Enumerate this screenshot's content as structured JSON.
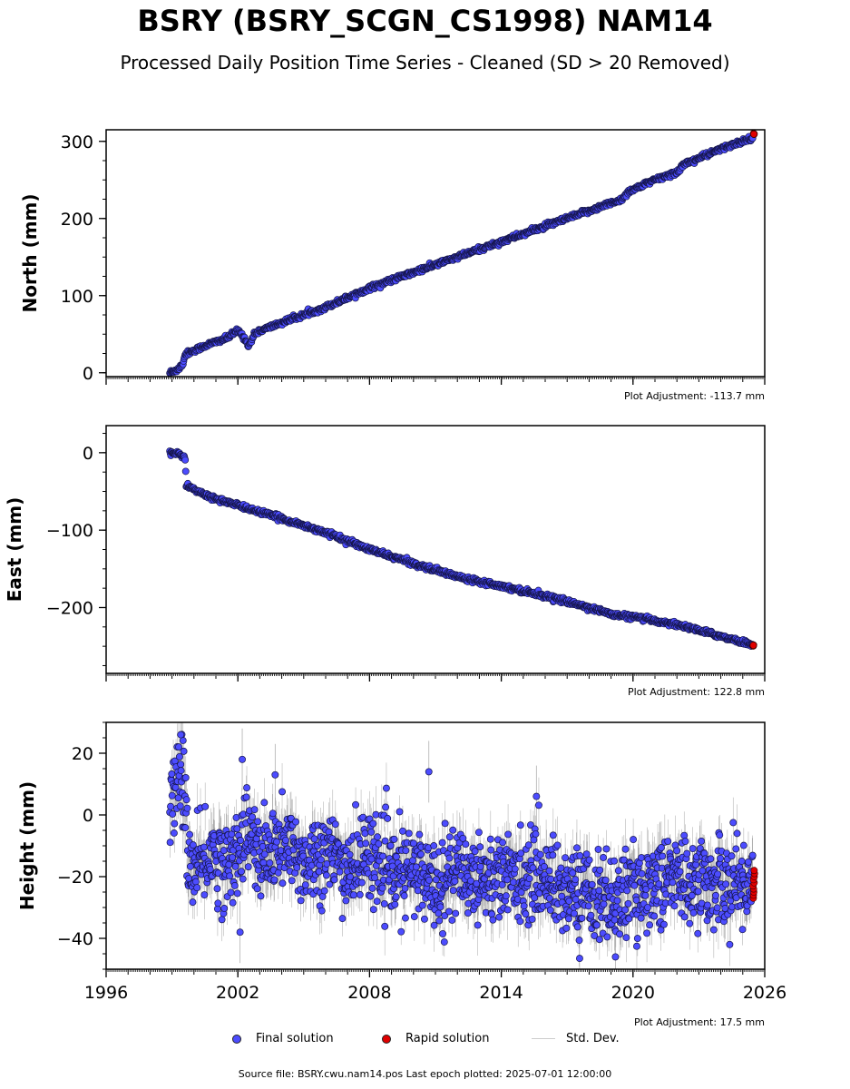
{
  "title": "BSRY (BSRY_SCGN_CS1998) NAM14",
  "subtitle": "Processed Daily Position Time Series - Cleaned (SD > 20 Removed)",
  "colors": {
    "final": "#4c4cff",
    "rapid": "#e00000",
    "std": "#c8c8c8",
    "std_dense": "#555555"
  },
  "legend": {
    "final": "Final solution",
    "rapid": "Rapid solution",
    "std": "Std. Dev."
  },
  "footer": "Source file: BSRY.cwu.nam14.pos  Last epoch plotted: 2025-07-01 12:00:00",
  "chart_data": [
    {
      "type": "scatter",
      "ylabel": "North (mm)",
      "adjustment": "Plot Adjustment: -113.7 mm",
      "xlim": [
        1996,
        2026
      ],
      "ylim": [
        -5,
        315
      ],
      "yticks": [
        0,
        100,
        200,
        300
      ],
      "xticks": [
        1996,
        2002,
        2008,
        2014,
        2020,
        2026
      ],
      "show_xtick_labels": false,
      "final": [
        [
          1998.9,
          0
        ],
        [
          1999.3,
          5
        ],
        [
          1999.5,
          12
        ],
        [
          1999.6,
          24
        ],
        [
          2000.5,
          35
        ],
        [
          2001.5,
          45
        ],
        [
          2002.0,
          55
        ],
        [
          2002.3,
          45
        ],
        [
          2002.5,
          35
        ],
        [
          2002.8,
          52
        ],
        [
          2004.0,
          65
        ],
        [
          2006.0,
          85
        ],
        [
          2008.0,
          110
        ],
        [
          2010.0,
          130
        ],
        [
          2012.0,
          150
        ],
        [
          2014.0,
          170
        ],
        [
          2016.0,
          190
        ],
        [
          2018.0,
          210
        ],
        [
          2019.5,
          225
        ],
        [
          2019.8,
          235
        ],
        [
          2021.0,
          250
        ],
        [
          2022.0,
          260
        ],
        [
          2022.3,
          270
        ],
        [
          2024.0,
          290
        ],
        [
          2025.45,
          305
        ]
      ],
      "rapid": [
        [
          2025.5,
          310
        ]
      ],
      "noise": 1.5
    },
    {
      "type": "scatter",
      "ylabel": "East (mm)",
      "adjustment": "Plot Adjustment: 122.8 mm",
      "xlim": [
        1996,
        2026
      ],
      "ylim": [
        -285,
        35
      ],
      "yticks": [
        0,
        -100,
        -200
      ],
      "yticklabels": [
        "0",
        "−100",
        "−200"
      ],
      "xticks": [
        1996,
        2002,
        2008,
        2014,
        2020,
        2026
      ],
      "show_xtick_labels": false,
      "final": [
        [
          1998.9,
          0
        ],
        [
          1999.3,
          -2
        ],
        [
          1999.6,
          -6
        ],
        [
          1999.65,
          -42
        ],
        [
          2000.5,
          -55
        ],
        [
          2002.0,
          -68
        ],
        [
          2004.0,
          -85
        ],
        [
          2006.0,
          -103
        ],
        [
          2008.0,
          -125
        ],
        [
          2010.0,
          -143
        ],
        [
          2012.0,
          -160
        ],
        [
          2014.0,
          -172
        ],
        [
          2016.0,
          -185
        ],
        [
          2018.0,
          -200
        ],
        [
          2019.2,
          -210
        ],
        [
          2020.0,
          -212
        ],
        [
          2022.0,
          -222
        ],
        [
          2024.0,
          -237
        ],
        [
          2025.45,
          -248
        ]
      ],
      "rapid": [
        [
          2025.5,
          -249
        ]
      ],
      "noise": 1.5
    },
    {
      "type": "scatter",
      "ylabel": "Height (mm)",
      "adjustment": "Plot Adjustment: 17.5 mm",
      "xlim": [
        1996,
        2026
      ],
      "ylim": [
        -50,
        30
      ],
      "yticks": [
        20,
        0,
        -20,
        -40
      ],
      "yticklabels": [
        "20",
        "0",
        "−20",
        "−40"
      ],
      "xticks": [
        1996,
        2002,
        2008,
        2014,
        2020,
        2026
      ],
      "xticklabels": [
        "1996",
        "2002",
        "2008",
        "2014",
        "2020",
        "2026"
      ],
      "show_xtick_labels": true,
      "final": [
        [
          1998.9,
          5
        ],
        [
          1999.3,
          10
        ],
        [
          1999.5,
          15
        ],
        [
          1999.7,
          -10
        ],
        [
          2000.0,
          -20
        ],
        [
          2000.8,
          -12
        ],
        [
          2001.5,
          -18
        ],
        [
          2002.0,
          -10
        ],
        [
          2002.5,
          -5
        ],
        [
          2003.0,
          -15
        ],
        [
          2004.0,
          -10
        ],
        [
          2005.0,
          -15
        ],
        [
          2006.0,
          -12
        ],
        [
          2007.0,
          -18
        ],
        [
          2008.0,
          -12
        ],
        [
          2009.0,
          -20
        ],
        [
          2010.0,
          -18
        ],
        [
          2011.0,
          -22
        ],
        [
          2012.0,
          -18
        ],
        [
          2013.0,
          -20
        ],
        [
          2014.0,
          -20
        ],
        [
          2015.0,
          -20
        ],
        [
          2016.0,
          -20
        ],
        [
          2017.0,
          -25
        ],
        [
          2018.0,
          -25
        ],
        [
          2019.0,
          -28
        ],
        [
          2020.0,
          -25
        ],
        [
          2021.0,
          -22
        ],
        [
          2022.0,
          -20
        ],
        [
          2023.0,
          -22
        ],
        [
          2024.0,
          -22
        ],
        [
          2025.45,
          -22
        ]
      ],
      "rapid": [
        [
          2025.5,
          -22
        ]
      ],
      "noise": 7,
      "outliers": [
        [
          2002.2,
          18
        ],
        [
          2010.7,
          14
        ],
        [
          2015.6,
          6
        ],
        [
          1999.4,
          26
        ],
        [
          2002.1,
          -38
        ],
        [
          2019.2,
          -46
        ],
        [
          2003.7,
          13
        ]
      ]
    }
  ]
}
